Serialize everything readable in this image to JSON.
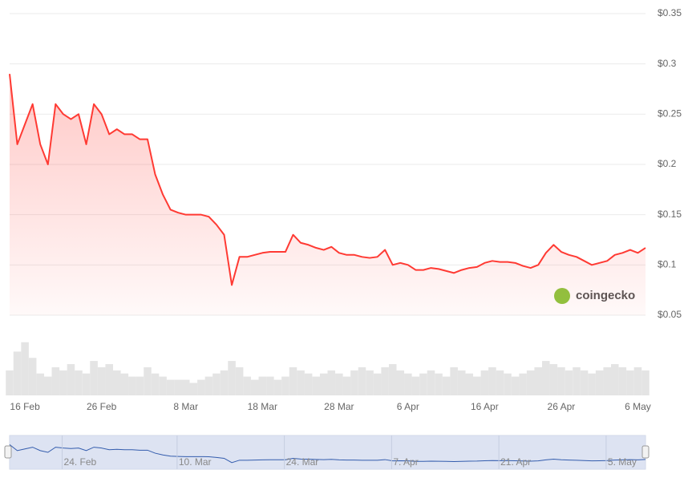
{
  "chart_data": {
    "type": "line",
    "watermark": "coingecko",
    "categories": [
      "14 Feb",
      "15 Feb",
      "16 Feb",
      "17 Feb",
      "18 Feb",
      "19 Feb",
      "20 Feb",
      "21 Feb",
      "22 Feb",
      "23 Feb",
      "24 Feb",
      "25 Feb",
      "26 Feb",
      "27 Feb",
      "28 Feb",
      "29 Feb",
      "1 Mar",
      "2 Mar",
      "3 Mar",
      "4 Mar",
      "5 Mar",
      "6 Mar",
      "7 Mar",
      "8 Mar",
      "9 Mar",
      "10 Mar",
      "11 Mar",
      "12 Mar",
      "13 Mar",
      "14 Mar",
      "15 Mar",
      "16 Mar",
      "17 Mar",
      "18 Mar",
      "19 Mar",
      "20 Mar",
      "21 Mar",
      "22 Mar",
      "23 Mar",
      "24 Mar",
      "25 Mar",
      "26 Mar",
      "27 Mar",
      "28 Mar",
      "29 Mar",
      "30 Mar",
      "31 Mar",
      "1 Apr",
      "2 Apr",
      "3 Apr",
      "4 Apr",
      "5 Apr",
      "6 Apr",
      "7 Apr",
      "8 Apr",
      "9 Apr",
      "10 Apr",
      "11 Apr",
      "12 Apr",
      "13 Apr",
      "14 Apr",
      "15 Apr",
      "16 Apr",
      "17 Apr",
      "18 Apr",
      "19 Apr",
      "20 Apr",
      "21 Apr",
      "22 Apr",
      "23 Apr",
      "24 Apr",
      "25 Apr",
      "26 Apr",
      "27 Apr",
      "28 Apr",
      "29 Apr",
      "30 Apr",
      "1 May",
      "2 May",
      "3 May",
      "4 May",
      "5 May",
      "6 May",
      "7 May"
    ],
    "series": [
      {
        "name": "Price",
        "color": "#ff3a33",
        "values": [
          0.29,
          0.22,
          0.24,
          0.26,
          0.22,
          0.2,
          0.26,
          0.25,
          0.245,
          0.25,
          0.22,
          0.26,
          0.25,
          0.23,
          0.235,
          0.23,
          0.23,
          0.225,
          0.225,
          0.19,
          0.17,
          0.155,
          0.152,
          0.15,
          0.15,
          0.15,
          0.148,
          0.14,
          0.13,
          0.08,
          0.108,
          0.108,
          0.11,
          0.112,
          0.113,
          0.113,
          0.113,
          0.13,
          0.122,
          0.12,
          0.117,
          0.115,
          0.118,
          0.112,
          0.11,
          0.11,
          0.108,
          0.107,
          0.108,
          0.115,
          0.1,
          0.102,
          0.1,
          0.095,
          0.095,
          0.097,
          0.096,
          0.094,
          0.092,
          0.095,
          0.097,
          0.098,
          0.102,
          0.104,
          0.103,
          0.103,
          0.102,
          0.099,
          0.097,
          0.1,
          0.112,
          0.12,
          0.113,
          0.11,
          0.108,
          0.104,
          0.1,
          0.102,
          0.104,
          0.11,
          0.112,
          0.115,
          0.112,
          0.117
        ]
      }
    ],
    "volume": {
      "color": "#e4e4e4",
      "vlim": [
        0,
        100
      ],
      "values": [
        40,
        70,
        85,
        60,
        35,
        30,
        45,
        40,
        50,
        40,
        35,
        55,
        45,
        50,
        40,
        35,
        30,
        30,
        45,
        35,
        30,
        25,
        25,
        25,
        20,
        25,
        30,
        35,
        40,
        55,
        45,
        30,
        25,
        30,
        30,
        25,
        30,
        45,
        40,
        35,
        30,
        35,
        40,
        35,
        30,
        40,
        45,
        40,
        35,
        45,
        50,
        40,
        35,
        30,
        35,
        40,
        35,
        30,
        45,
        40,
        35,
        30,
        40,
        45,
        40,
        35,
        30,
        35,
        40,
        45,
        55,
        50,
        45,
        40,
        45,
        40,
        35,
        40,
        45,
        50,
        45,
        40,
        45,
        40
      ]
    },
    "ylim": [
      0.05,
      0.35
    ],
    "yticks": [
      {
        "value": 0.05,
        "label": "$0.05"
      },
      {
        "value": 0.1,
        "label": "$0.1"
      },
      {
        "value": 0.15,
        "label": "$0.15"
      },
      {
        "value": 0.2,
        "label": "$0.2"
      },
      {
        "value": 0.25,
        "label": "$0.25"
      },
      {
        "value": 0.3,
        "label": "$0.3"
      },
      {
        "value": 0.35,
        "label": "$0.35"
      }
    ],
    "xticks": [
      "16 Feb",
      "26 Feb",
      "8 Mar",
      "18 Mar",
      "28 Mar",
      "6 Apr",
      "16 Apr",
      "26 Apr",
      "6 May"
    ],
    "navigator_xticks": [
      {
        "value": "24 Feb",
        "label": "24. Feb"
      },
      {
        "value": "10 Mar",
        "label": "10. Mar"
      },
      {
        "value": "24 Mar",
        "label": "24. Mar"
      },
      {
        "value": "7 Apr",
        "label": "7. Apr"
      },
      {
        "value": "21 Apr",
        "label": "21. Apr"
      },
      {
        "value": "5 May",
        "label": "5. May"
      }
    ],
    "grid": true
  }
}
